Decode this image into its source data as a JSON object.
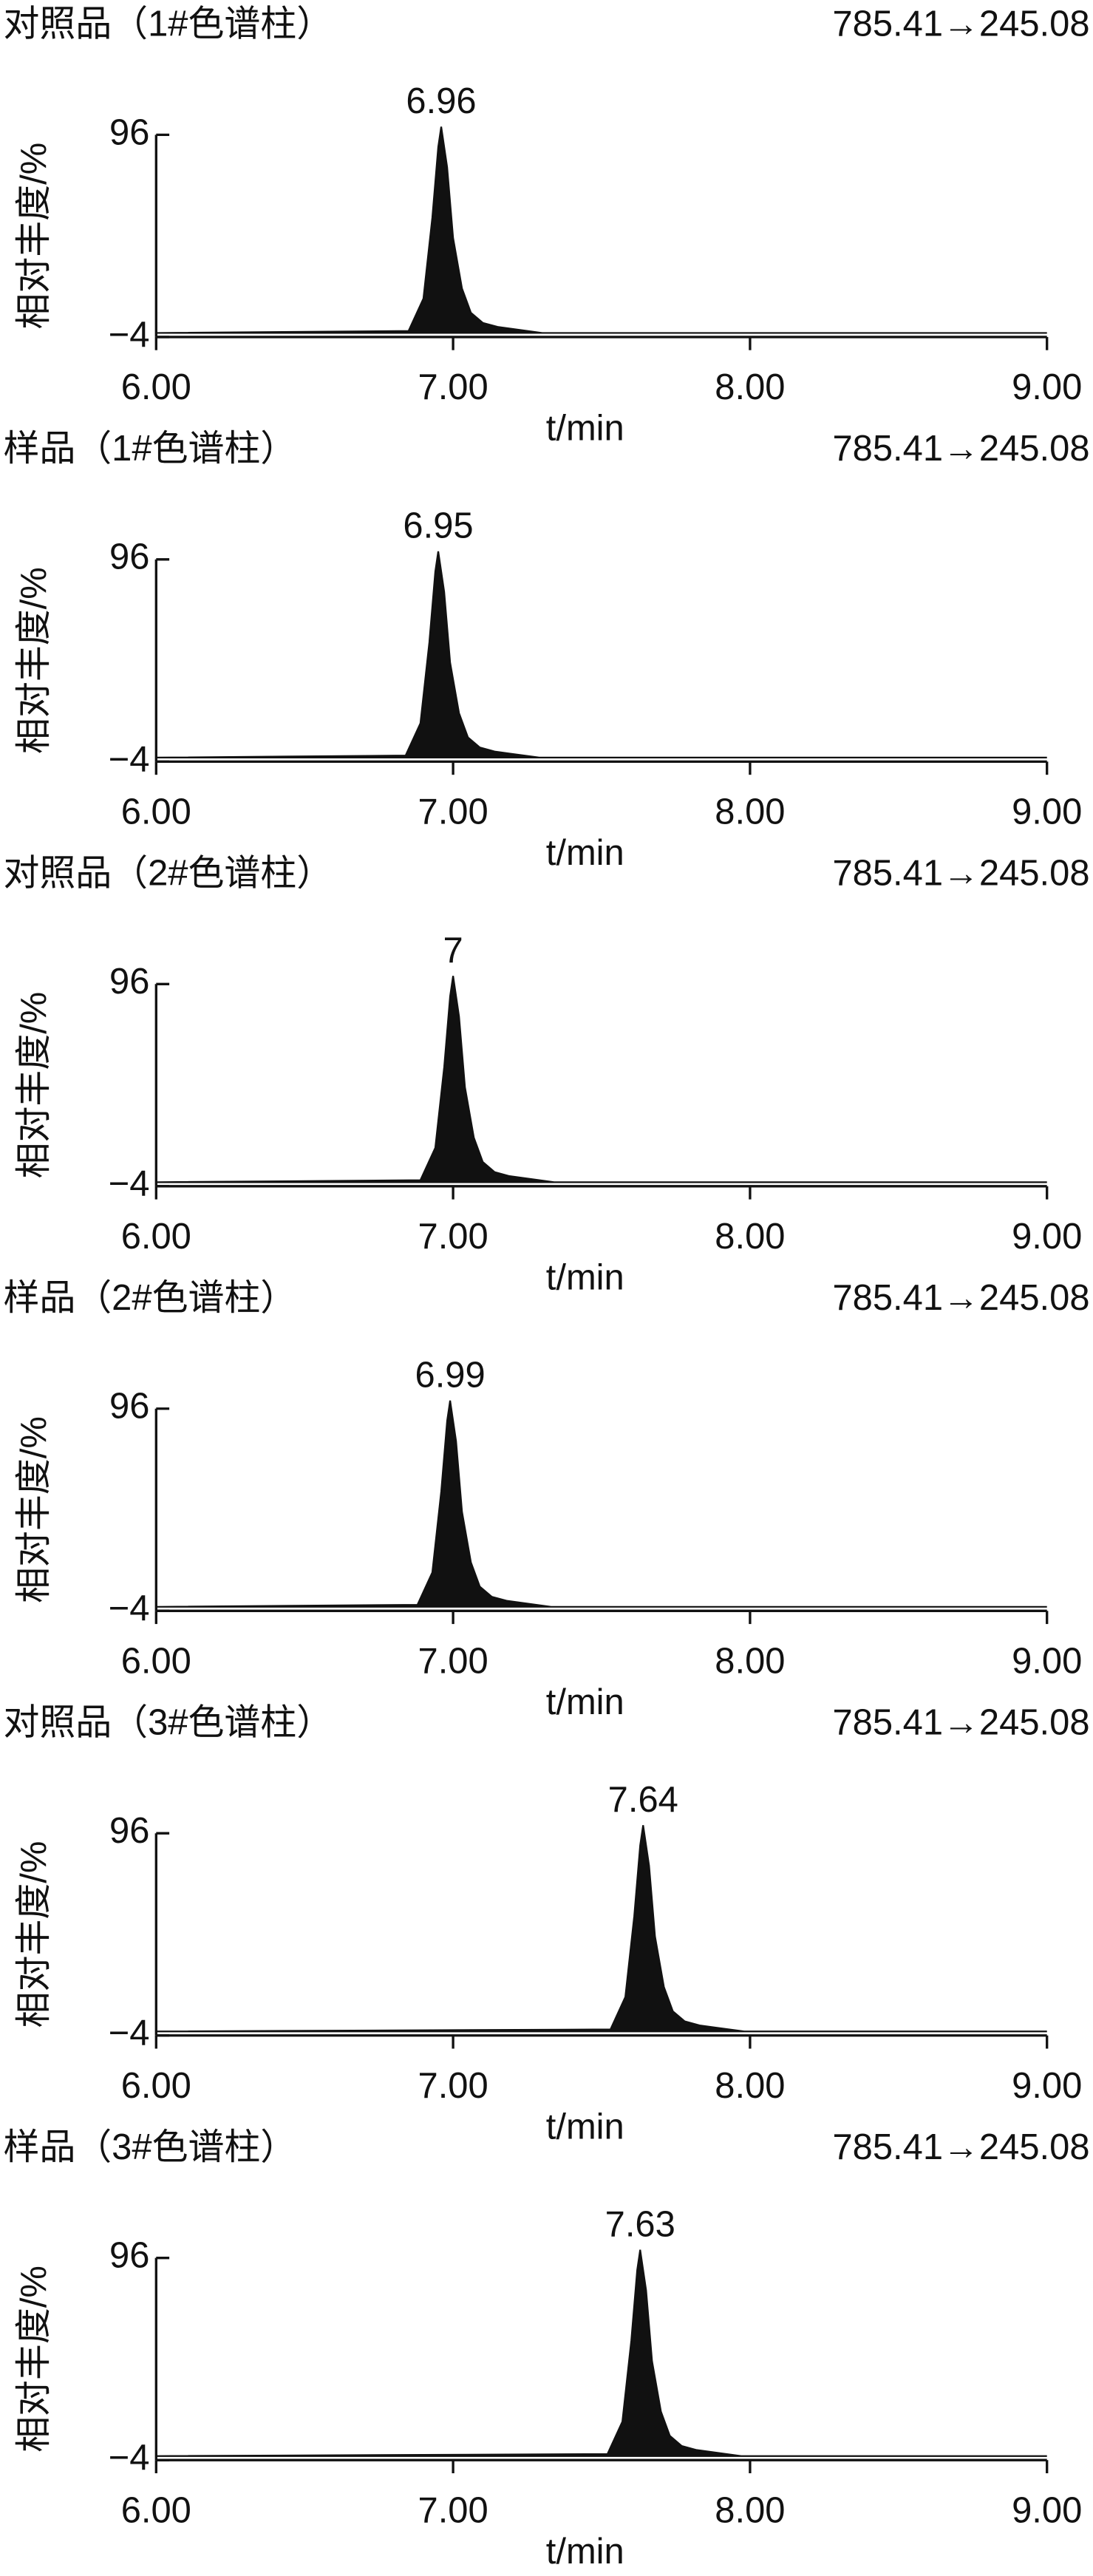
{
  "chart_data": [
    {
      "type": "area",
      "title": "对照品（1#色谱柱）",
      "transition": "785.41→245.08",
      "y_label": "相对丰度/%",
      "x_label": "t/min",
      "peak_x": 6.96,
      "x": [
        6.0,
        6.85,
        6.9,
        6.93,
        6.95,
        6.96,
        6.98,
        7.0,
        7.03,
        7.06,
        7.1,
        7.15,
        7.2,
        7.3,
        9.0
      ],
      "values": [
        -2,
        -1,
        15,
        55,
        90,
        100,
        80,
        45,
        20,
        8,
        3,
        1,
        0,
        -2,
        -2
      ],
      "color": "#111111",
      "xlim": [
        6,
        9
      ],
      "ylim": [
        -4,
        96
      ],
      "xticks": [
        {
          "value": 6,
          "label": "6.00"
        },
        {
          "value": 7,
          "label": "7.00"
        },
        {
          "value": 8,
          "label": "8.00"
        },
        {
          "value": 9,
          "label": "9.00"
        }
      ],
      "yticks": [
        {
          "value": -4,
          "label": "−4"
        },
        96
      ]
    },
    {
      "type": "area",
      "title": "样品（1#色谱柱）",
      "transition": "785.41→245.08",
      "y_label": "相对丰度/%",
      "x_label": "t/min",
      "peak_x": 6.95,
      "x": [
        6.0,
        6.84,
        6.89,
        6.92,
        6.94,
        6.95,
        6.97,
        6.99,
        7.02,
        7.05,
        7.09,
        7.14,
        7.19,
        7.29,
        9.0
      ],
      "values": [
        -2,
        -1,
        15,
        55,
        90,
        100,
        80,
        45,
        20,
        8,
        3,
        1,
        0,
        -2,
        -2
      ],
      "color": "#111111",
      "xlim": [
        6,
        9
      ],
      "ylim": [
        -4,
        96
      ],
      "xticks": [
        {
          "value": 6,
          "label": "6.00"
        },
        {
          "value": 7,
          "label": "7.00"
        },
        {
          "value": 8,
          "label": "8.00"
        },
        {
          "value": 9,
          "label": "9.00"
        }
      ],
      "yticks": [
        {
          "value": -4,
          "label": "−4"
        },
        96
      ]
    },
    {
      "type": "area",
      "title": "对照品（2#色谱柱）",
      "transition": "785.41→245.08",
      "y_label": "相对丰度/%",
      "x_label": "t/min",
      "peak_x": 7.0,
      "x": [
        6.0,
        6.89,
        6.94,
        6.97,
        6.99,
        7.0,
        7.02,
        7.04,
        7.07,
        7.1,
        7.14,
        7.19,
        7.24,
        7.34,
        9.0
      ],
      "values": [
        -2,
        -1,
        15,
        55,
        90,
        100,
        80,
        45,
        20,
        8,
        3,
        1,
        0,
        -2,
        -2
      ],
      "color": "#111111",
      "xlim": [
        6,
        9
      ],
      "ylim": [
        -4,
        96
      ],
      "xticks": [
        {
          "value": 6,
          "label": "6.00"
        },
        {
          "value": 7,
          "label": "7.00"
        },
        {
          "value": 8,
          "label": "8.00"
        },
        {
          "value": 9,
          "label": "9.00"
        }
      ],
      "yticks": [
        {
          "value": -4,
          "label": "−4"
        },
        96
      ]
    },
    {
      "type": "area",
      "title": "样品（2#色谱柱）",
      "transition": "785.41→245.08",
      "y_label": "相对丰度/%",
      "x_label": "t/min",
      "peak_x": 6.99,
      "x": [
        6.0,
        6.88,
        6.93,
        6.96,
        6.98,
        6.99,
        7.01,
        7.03,
        7.06,
        7.09,
        7.13,
        7.18,
        7.23,
        7.33,
        9.0
      ],
      "values": [
        -2,
        -1,
        15,
        55,
        90,
        100,
        80,
        45,
        20,
        8,
        3,
        1,
        0,
        -2,
        -2
      ],
      "color": "#111111",
      "xlim": [
        6,
        9
      ],
      "ylim": [
        -4,
        96
      ],
      "xticks": [
        {
          "value": 6,
          "label": "6.00"
        },
        {
          "value": 7,
          "label": "7.00"
        },
        {
          "value": 8,
          "label": "8.00"
        },
        {
          "value": 9,
          "label": "9.00"
        }
      ],
      "yticks": [
        {
          "value": -4,
          "label": "−4"
        },
        96
      ]
    },
    {
      "type": "area",
      "title": "对照品（3#色谱柱）",
      "transition": "785.41→245.08",
      "y_label": "相对丰度/%",
      "x_label": "t/min",
      "peak_x": 7.64,
      "x": [
        6.0,
        7.53,
        7.58,
        7.61,
        7.63,
        7.64,
        7.66,
        7.68,
        7.71,
        7.74,
        7.78,
        7.83,
        7.88,
        7.98,
        9.0
      ],
      "values": [
        -2,
        -1,
        15,
        55,
        90,
        100,
        80,
        45,
        20,
        8,
        3,
        1,
        0,
        -2,
        -2
      ],
      "color": "#111111",
      "xlim": [
        6,
        9
      ],
      "ylim": [
        -4,
        96
      ],
      "xticks": [
        {
          "value": 6,
          "label": "6.00"
        },
        {
          "value": 7,
          "label": "7.00"
        },
        {
          "value": 8,
          "label": "8.00"
        },
        {
          "value": 9,
          "label": "9.00"
        }
      ],
      "yticks": [
        {
          "value": -4,
          "label": "−4"
        },
        96
      ]
    },
    {
      "type": "area",
      "title": "样品（3#色谱柱）",
      "transition": "785.41→245.08",
      "y_label": "相对丰度/%",
      "x_label": "t/min",
      "peak_x": 7.63,
      "x": [
        6.0,
        7.52,
        7.57,
        7.6,
        7.62,
        7.63,
        7.65,
        7.67,
        7.7,
        7.73,
        7.77,
        7.82,
        7.87,
        7.97,
        9.0
      ],
      "values": [
        -2,
        -1,
        15,
        55,
        90,
        100,
        80,
        45,
        20,
        8,
        3,
        1,
        0,
        -2,
        -2
      ],
      "color": "#111111",
      "xlim": [
        6,
        9
      ],
      "ylim": [
        -4,
        96
      ],
      "xticks": [
        {
          "value": 6,
          "label": "6.00"
        },
        {
          "value": 7,
          "label": "7.00"
        },
        {
          "value": 8,
          "label": "8.00"
        },
        {
          "value": 9,
          "label": "9.00"
        }
      ],
      "yticks": [
        {
          "value": -4,
          "label": "−4"
        },
        96
      ]
    }
  ]
}
